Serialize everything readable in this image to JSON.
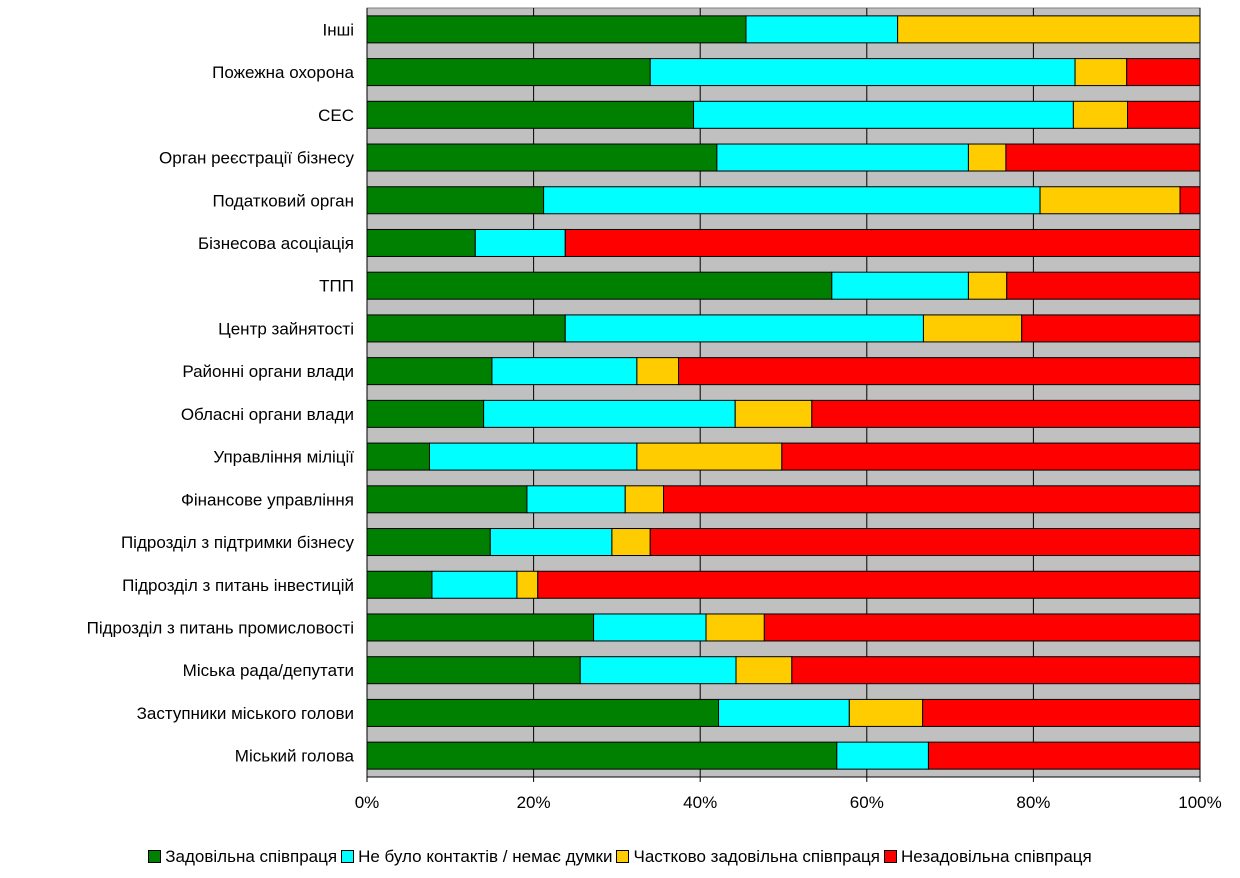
{
  "chart_data": {
    "type": "bar",
    "orientation": "horizontal",
    "stacked": "percent",
    "title": "",
    "xlabel": "",
    "ylabel": "",
    "xlim": [
      0,
      100
    ],
    "x_ticks": [
      "0%",
      "20%",
      "40%",
      "60%",
      "80%",
      "100%"
    ],
    "grid": true,
    "legend_position": "bottom",
    "categories": [
      "Інші",
      "Пожежна охорона",
      "СЕС",
      "Орган реєстрації бізнесу",
      "Податковий орган",
      "Бізнесова асоціація",
      "ТПП",
      "Центр зайнятості",
      "Районні органи влади",
      "Обласні органи влади",
      "Управління міліції",
      "Фінансове управління",
      "Підрозділ з підтримки бізнесу",
      "Підрозділ з питань інвестицій",
      "Підрозділ  з питань промисловості",
      "Міська рада/депутати",
      "Заступники міського голови",
      "Міський голова"
    ],
    "series": [
      {
        "name": "Задовільна співпраця",
        "color": "#008000",
        "values": [
          45.5,
          34.0,
          39.2,
          42.0,
          21.2,
          13.0,
          55.8,
          23.8,
          15.0,
          14.0,
          7.5,
          19.2,
          14.8,
          7.8,
          27.2,
          25.6,
          42.2,
          56.4
        ]
      },
      {
        "name": "Не було контактів / немає думки",
        "color": "#00FFFF",
        "values": [
          18.2,
          51.0,
          45.6,
          30.2,
          59.6,
          10.8,
          16.4,
          43.0,
          17.4,
          30.2,
          24.9,
          11.8,
          14.6,
          10.2,
          13.5,
          18.7,
          15.7,
          11.0
        ]
      },
      {
        "name": "Частково задовільна співпраця",
        "color": "#FFCC00",
        "values": [
          36.3,
          6.2,
          6.5,
          4.5,
          16.8,
          0,
          4.6,
          11.8,
          5.0,
          9.2,
          17.4,
          4.6,
          4.6,
          2.5,
          7.0,
          6.7,
          8.8,
          0
        ]
      },
      {
        "name": "Незадовільна співпраця",
        "color": "#FF0000",
        "values": [
          0,
          8.8,
          8.7,
          23.3,
          2.4,
          76.2,
          23.2,
          21.4,
          62.6,
          46.6,
          50.2,
          64.4,
          66.0,
          79.5,
          52.3,
          49.0,
          33.3,
          32.6
        ]
      }
    ]
  }
}
